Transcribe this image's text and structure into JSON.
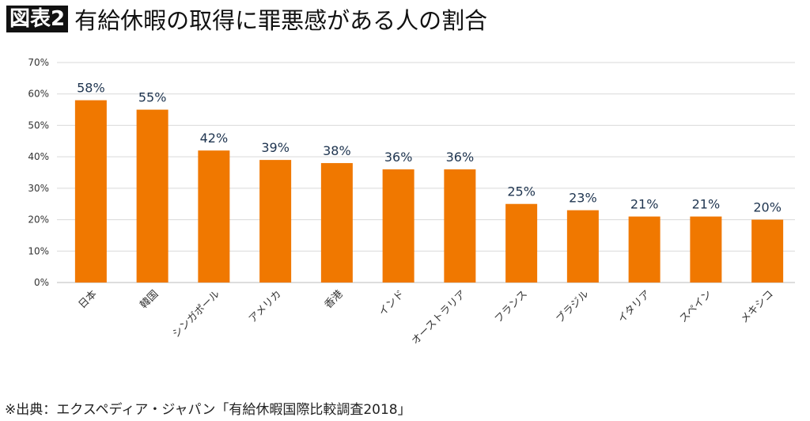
{
  "badge": "図表2",
  "title": "有給休暇の取得に罪悪感がある人の割合",
  "source": "※出典：エクスペディア・ジャパン「有給休暇国際比較調査2018」",
  "chart_data": {
    "type": "bar",
    "title": "有給休暇の取得に罪悪感がある人の割合",
    "categories": [
      "日本",
      "韓国",
      "シンガポール",
      "アメリカ",
      "香港",
      "インド",
      "オーストラリア",
      "フランス",
      "ブラジル",
      "イタリア",
      "スペイン",
      "メキシコ"
    ],
    "values": [
      58,
      55,
      42,
      39,
      38,
      36,
      36,
      25,
      23,
      21,
      21,
      20
    ],
    "data_labels": [
      "58%",
      "55%",
      "42%",
      "39%",
      "38%",
      "36%",
      "36%",
      "25%",
      "23%",
      "21%",
      "21%",
      "20%"
    ],
    "yticks": [
      0,
      10,
      20,
      30,
      40,
      50,
      60,
      70
    ],
    "ytick_labels": [
      "0%",
      "10%",
      "20%",
      "30%",
      "40%",
      "50%",
      "60%",
      "70%"
    ],
    "ylim": [
      0,
      70
    ],
    "grid": true,
    "bar_color": "#F07800",
    "xlabel": "",
    "ylabel": ""
  }
}
